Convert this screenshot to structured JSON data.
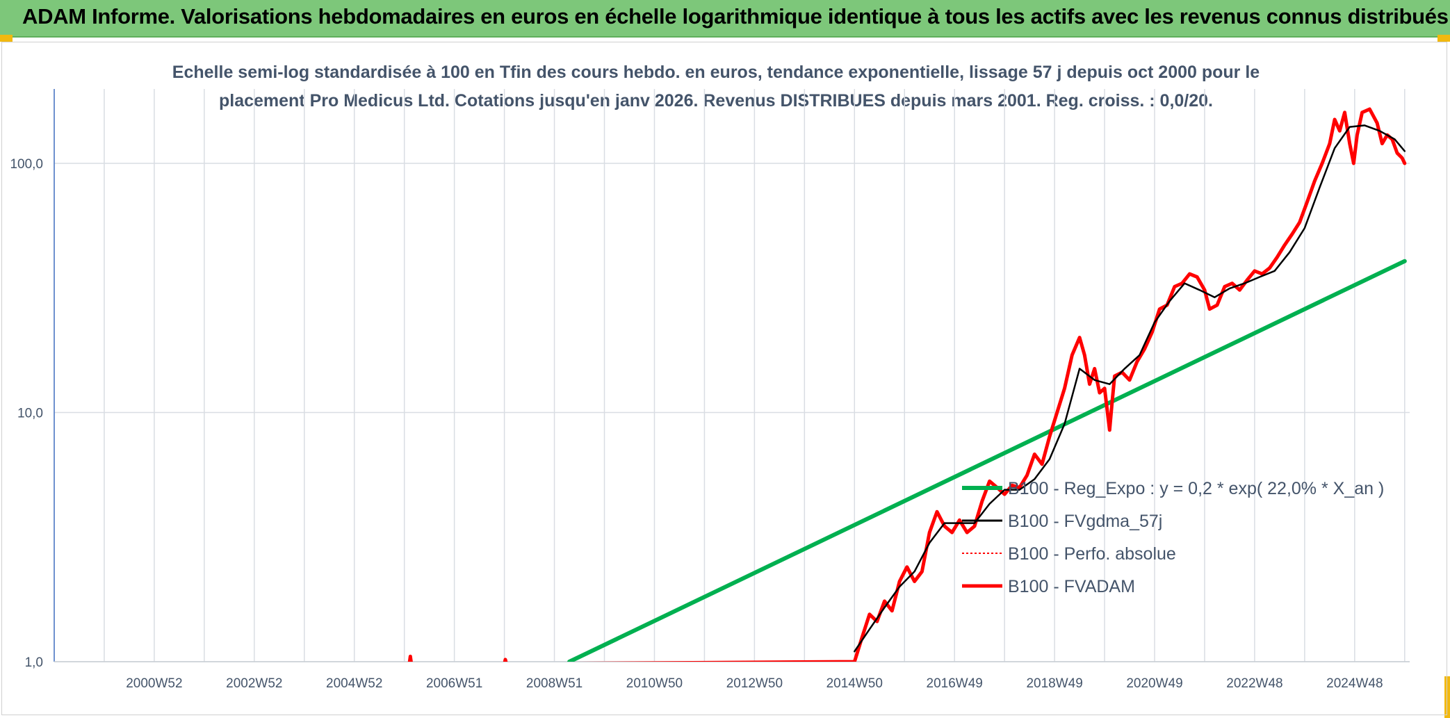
{
  "header": {
    "banner_title": "ADAM Informe. Valorisations hebdomadaires en euros en échelle logarithmique identique à tous les actifs avec les revenus connus distribués"
  },
  "colors": {
    "banner_bg": "#7dc77a",
    "accent_corner": "#f2b90f",
    "fvadam": "#ff0000",
    "fvgdma": "#000000",
    "perfo": "#ff0000",
    "reg_expo": "#00b050"
  },
  "chart_data": {
    "type": "line",
    "title_line1": "Echelle semi-log standardisée à 100 en Tfin des cours hebdo. en euros, tendance exponentielle, lissage 57 j depuis oct 2000 pour le",
    "title_line2": "placement Pro Medicus Ltd. Cotations jusqu'en janv 2026. Revenus DISTRIBUES depuis mars 2001. Reg. croiss. : 0,0/20.",
    "y_scale": "log",
    "ylim": [
      1,
      180
    ],
    "y_ticks": [
      {
        "value": 1,
        "label": "1,0"
      },
      {
        "value": 10,
        "label": "10,0"
      },
      {
        "value": 100,
        "label": "100,0"
      }
    ],
    "x_range": [
      1999.0,
      2026.1
    ],
    "x_ticks": [
      {
        "value": 2001.0,
        "label": "2000W52"
      },
      {
        "value": 2003.0,
        "label": "2002W52"
      },
      {
        "value": 2005.0,
        "label": "2004W52"
      },
      {
        "value": 2007.0,
        "label": "2006W51"
      },
      {
        "value": 2009.0,
        "label": "2008W51"
      },
      {
        "value": 2011.0,
        "label": "2010W50"
      },
      {
        "value": 2013.0,
        "label": "2012W50"
      },
      {
        "value": 2015.0,
        "label": "2014W50"
      },
      {
        "value": 2017.0,
        "label": "2016W49"
      },
      {
        "value": 2019.0,
        "label": "2018W49"
      },
      {
        "value": 2021.0,
        "label": "2020W49"
      },
      {
        "value": 2023.0,
        "label": "2022W48"
      },
      {
        "value": 2025.0,
        "label": "2024W48"
      }
    ],
    "grid": "vertical and horizontal",
    "legend_position": "center-right",
    "series": [
      {
        "name": "B100 - Reg_Expo : y = 0,2 * exp( 22,0% *  X_an )",
        "style": "solid-thick",
        "color": "#00b050",
        "x": [
          2009.3,
          2026.0
        ],
        "y": [
          1.0,
          40.5
        ]
      },
      {
        "name": "B100 - FVgdma_57j",
        "style": "solid-thin",
        "color": "#000000",
        "x": [
          2015.0,
          2015.3,
          2015.6,
          2015.9,
          2016.2,
          2016.5,
          2016.8,
          2017.1,
          2017.4,
          2017.7,
          2018.0,
          2018.3,
          2018.6,
          2018.9,
          2019.2,
          2019.5,
          2019.8,
          2020.1,
          2020.4,
          2020.7,
          2021.0,
          2021.3,
          2021.6,
          2021.9,
          2022.2,
          2022.5,
          2022.8,
          2023.1,
          2023.4,
          2023.7,
          2024.0,
          2024.3,
          2024.6,
          2024.9,
          2025.2,
          2025.5,
          2025.8,
          2026.0
        ],
        "y": [
          1.1,
          1.35,
          1.65,
          2.0,
          2.3,
          3.0,
          3.6,
          3.6,
          3.6,
          4.3,
          4.9,
          4.9,
          5.4,
          6.5,
          9.0,
          15.0,
          13.5,
          13.0,
          15.0,
          17.0,
          23.0,
          28.0,
          33.0,
          31.0,
          29.0,
          31.5,
          33.0,
          35.0,
          37.0,
          44.0,
          55.0,
          80.0,
          115.0,
          140.0,
          142.0,
          135.0,
          125.0,
          112.0
        ]
      },
      {
        "name": "B100 - Perfo. absolue",
        "style": "dotted",
        "color": "#ff0000",
        "x": [],
        "y": []
      },
      {
        "name": "B100 - FVADAM",
        "style": "solid-thick",
        "color": "#ff0000",
        "x": [
          2006.1,
          2006.12,
          2006.14,
          2008.0,
          2008.02,
          2008.04,
          2015.0,
          2015.15,
          2015.3,
          2015.45,
          2015.6,
          2015.75,
          2015.9,
          2016.05,
          2016.2,
          2016.35,
          2016.5,
          2016.65,
          2016.8,
          2016.95,
          2017.1,
          2017.25,
          2017.4,
          2017.55,
          2017.7,
          2017.85,
          2018.0,
          2018.15,
          2018.3,
          2018.45,
          2018.6,
          2018.75,
          2018.9,
          2019.05,
          2019.2,
          2019.35,
          2019.5,
          2019.6,
          2019.7,
          2019.8,
          2019.9,
          2020.0,
          2020.1,
          2020.15,
          2020.2,
          2020.35,
          2020.5,
          2020.65,
          2020.8,
          2020.95,
          2021.1,
          2021.25,
          2021.4,
          2021.55,
          2021.7,
          2021.85,
          2022.0,
          2022.1,
          2022.25,
          2022.4,
          2022.55,
          2022.7,
          2022.85,
          2023.0,
          2023.15,
          2023.3,
          2023.45,
          2023.6,
          2023.75,
          2023.9,
          2024.05,
          2024.2,
          2024.35,
          2024.5,
          2024.6,
          2024.7,
          2024.8,
          2024.9,
          2024.98,
          2025.05,
          2025.15,
          2025.3,
          2025.45,
          2025.55,
          2025.65,
          2025.75,
          2025.85,
          2025.95,
          2026.0
        ],
        "y": [
          0.98,
          1.05,
          0.98,
          0.98,
          1.02,
          0.98,
          1.0,
          1.25,
          1.55,
          1.45,
          1.75,
          1.6,
          2.1,
          2.4,
          2.1,
          2.3,
          3.3,
          4.0,
          3.5,
          3.3,
          3.7,
          3.3,
          3.5,
          4.4,
          5.3,
          5.0,
          4.7,
          5.1,
          5.0,
          5.6,
          6.8,
          6.2,
          8.0,
          10.0,
          12.5,
          17.0,
          20.0,
          17.0,
          13.0,
          15.0,
          12.0,
          12.5,
          8.5,
          11.0,
          14.0,
          14.5,
          13.5,
          16.0,
          18.0,
          21.0,
          26.0,
          27.0,
          32.0,
          33.0,
          36.0,
          35.0,
          31.0,
          26.0,
          27.0,
          32.0,
          33.0,
          31.0,
          34.0,
          37.0,
          36.0,
          38.0,
          42.0,
          47.0,
          52.0,
          58.0,
          70.0,
          85.0,
          100.0,
          120.0,
          150.0,
          135.0,
          160.0,
          120.0,
          100.0,
          130.0,
          160.0,
          165.0,
          145.0,
          120.0,
          130.0,
          125.0,
          110.0,
          105.0,
          100.0
        ]
      }
    ]
  }
}
